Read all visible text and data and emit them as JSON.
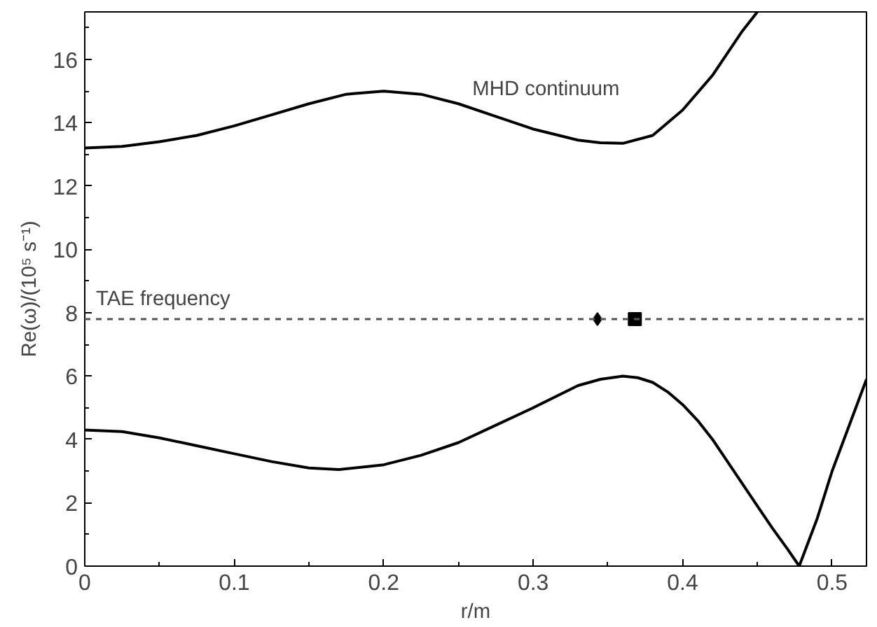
{
  "chart_data": {
    "type": "line",
    "xlabel": "r/m",
    "ylabel": "Re(ω)/(10⁵ s⁻¹)",
    "xlim": [
      0,
      0.523
    ],
    "ylim": [
      0,
      17.5
    ],
    "xticks": [
      0,
      0.1,
      0.2,
      0.3,
      0.4,
      0.5
    ],
    "yticks": [
      0,
      2,
      4,
      6,
      8,
      10,
      12,
      14,
      16
    ],
    "grid": false,
    "series": [
      {
        "color": "#000000",
        "x": [
          0,
          0.025,
          0.05,
          0.075,
          0.1,
          0.125,
          0.15,
          0.175,
          0.2,
          0.225,
          0.25,
          0.275,
          0.3,
          0.33,
          0.345,
          0.36,
          0.38,
          0.4,
          0.42,
          0.44,
          0.45
        ],
        "values": [
          13.2,
          13.25,
          13.4,
          13.6,
          13.9,
          14.25,
          14.6,
          14.9,
          15.0,
          14.9,
          14.6,
          14.2,
          13.8,
          13.45,
          13.37,
          13.35,
          13.6,
          14.4,
          15.5,
          16.9,
          17.5
        ]
      },
      {
        "color": "#000000",
        "x": [
          0,
          0.025,
          0.05,
          0.075,
          0.1,
          0.125,
          0.15,
          0.17,
          0.2,
          0.225,
          0.25,
          0.275,
          0.3,
          0.33,
          0.345,
          0.36,
          0.37,
          0.38,
          0.39,
          0.4,
          0.41,
          0.42,
          0.43,
          0.44,
          0.45,
          0.46,
          0.47,
          0.478,
          0.49,
          0.5,
          0.523
        ],
        "values": [
          4.3,
          4.25,
          4.05,
          3.8,
          3.55,
          3.3,
          3.1,
          3.05,
          3.2,
          3.5,
          3.9,
          4.45,
          5.0,
          5.7,
          5.9,
          6.0,
          5.95,
          5.8,
          5.5,
          5.1,
          4.6,
          4.0,
          3.3,
          2.6,
          1.9,
          1.2,
          0.55,
          0,
          1.5,
          3.0,
          5.9
        ]
      },
      {
        "type": "scatter",
        "marker": "diamond",
        "color": "#000000",
        "x": [
          0.343
        ],
        "values": [
          7.8
        ]
      },
      {
        "type": "scatter",
        "marker": "square",
        "color": "#000000",
        "x": [
          0.368
        ],
        "values": [
          7.8
        ]
      }
    ],
    "ref_lines": [
      {
        "axis": "y",
        "value": 7.8,
        "label": "TAE frequency",
        "color": "#555555",
        "line_style": "dashed"
      }
    ],
    "annotations": [
      "MHD continuum"
    ]
  }
}
